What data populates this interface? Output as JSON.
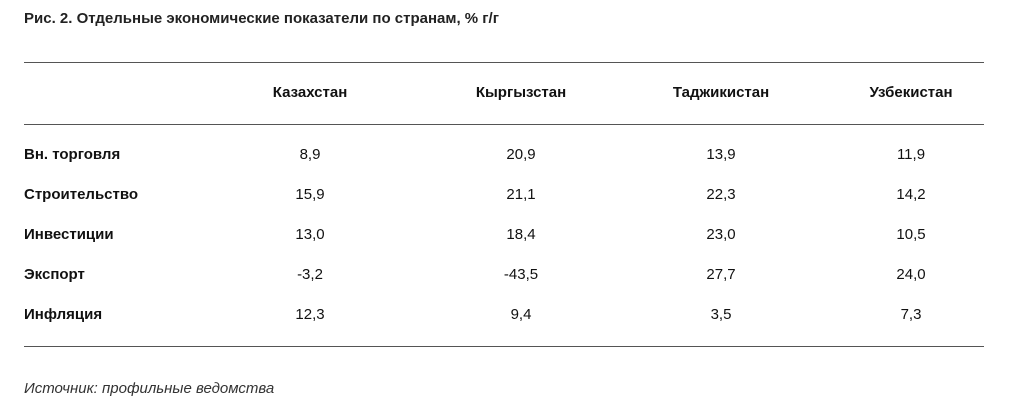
{
  "title": "Рис. 2. Отдельные экономические показатели по странам, % г/г",
  "table": {
    "columns": [
      "Казахстан",
      "Кыргызстан",
      "Таджикистан",
      "Узбекистан"
    ],
    "rows": [
      {
        "label": "Вн. торговля",
        "values": [
          "8,9",
          "20,9",
          "13,9",
          "11,9"
        ]
      },
      {
        "label": "Строительство",
        "values": [
          "15,9",
          "21,1",
          "22,3",
          "14,2"
        ]
      },
      {
        "label": "Инвестиции",
        "values": [
          "13,0",
          "18,4",
          "23,0",
          "10,5"
        ]
      },
      {
        "label": "Экспорт",
        "values": [
          "-3,2",
          "-43,5",
          "27,7",
          "24,0"
        ]
      },
      {
        "label": "Инфляция",
        "values": [
          "12,3",
          "9,4",
          "3,5",
          "7,3"
        ]
      }
    ]
  },
  "source": "Источник: профильные ведомства"
}
